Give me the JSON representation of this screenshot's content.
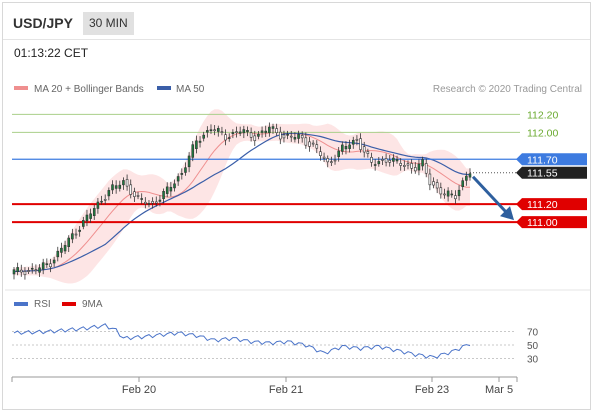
{
  "header": {
    "symbol": "USD/JPY",
    "interval": "30 MIN"
  },
  "timestamp": "01:13:22 CET",
  "legend": {
    "bb_label": "MA 20 + Bollinger Bands",
    "ma50_label": "MA 50",
    "credit": "Research © 2020 Trading Central"
  },
  "rsi_legend": {
    "rsi_label": "RSI",
    "ma9_label": "9MA"
  },
  "colors": {
    "candle_fill": "#1f7a3f",
    "bollinger": "#fbd0d0",
    "ma20": "#ef8f8f",
    "ma50": "#3a5ea8",
    "support": "#e00000",
    "resistance": "#a9cf8a",
    "pivot": "#3d7be0",
    "arrow": "#2e5f9e",
    "rsi": "#4b74c9"
  },
  "chart_data": {
    "type": "candlestick",
    "title": "USD/JPY",
    "interval": "30 MIN",
    "x_ticks": [
      "Feb 20",
      "Feb 21",
      "Feb 23",
      "Mar 5"
    ],
    "ylim": [
      110.4,
      112.36
    ],
    "indicators": [
      "MA 20 + Bollinger Bands",
      "MA 50"
    ],
    "current_price": 111.55,
    "levels": [
      {
        "label": "112.20",
        "value": 112.2,
        "type": "resistance"
      },
      {
        "label": "112.00",
        "value": 112.0,
        "type": "resistance"
      },
      {
        "label": "111.70",
        "value": 111.7,
        "type": "pivot"
      },
      {
        "label": "111.55",
        "value": 111.55,
        "type": "last"
      },
      {
        "label": "111.20",
        "value": 111.2,
        "type": "support"
      },
      {
        "label": "111.00",
        "value": 111.0,
        "type": "support"
      }
    ],
    "anchors": [
      {
        "i": 0,
        "price": 110.45
      },
      {
        "i": 6,
        "price": 110.47
      },
      {
        "i": 10,
        "price": 110.55
      },
      {
        "i": 14,
        "price": 110.75
      },
      {
        "i": 18,
        "price": 110.95
      },
      {
        "i": 22,
        "price": 111.15
      },
      {
        "i": 26,
        "price": 111.35
      },
      {
        "i": 30,
        "price": 111.45
      },
      {
        "i": 34,
        "price": 111.25
      },
      {
        "i": 38,
        "price": 111.2
      },
      {
        "i": 42,
        "price": 111.35
      },
      {
        "i": 46,
        "price": 111.55
      },
      {
        "i": 50,
        "price": 111.9
      },
      {
        "i": 54,
        "price": 112.05
      },
      {
        "i": 58,
        "price": 111.95
      },
      {
        "i": 62,
        "price": 112.02
      },
      {
        "i": 66,
        "price": 111.95
      },
      {
        "i": 70,
        "price": 112.05
      },
      {
        "i": 74,
        "price": 111.95
      },
      {
        "i": 78,
        "price": 111.95
      },
      {
        "i": 82,
        "price": 111.85
      },
      {
        "i": 86,
        "price": 111.65
      },
      {
        "i": 90,
        "price": 111.82
      },
      {
        "i": 94,
        "price": 111.92
      },
      {
        "i": 98,
        "price": 111.65
      },
      {
        "i": 102,
        "price": 111.7
      },
      {
        "i": 106,
        "price": 111.65
      },
      {
        "i": 110,
        "price": 111.6
      },
      {
        "i": 112,
        "price": 111.65
      },
      {
        "i": 114,
        "price": 111.45
      },
      {
        "i": 118,
        "price": 111.3
      },
      {
        "i": 121,
        "price": 111.3
      },
      {
        "i": 124,
        "price": 111.52
      },
      {
        "i": 125,
        "price": 111.55
      }
    ],
    "rsi": {
      "levels": [
        70,
        50,
        30
      ],
      "ylim": [
        10,
        90
      ],
      "anchors": [
        {
          "i": 0,
          "v": 68
        },
        {
          "i": 10,
          "v": 70
        },
        {
          "i": 20,
          "v": 75
        },
        {
          "i": 25,
          "v": 79
        },
        {
          "i": 28,
          "v": 72
        },
        {
          "i": 30,
          "v": 60
        },
        {
          "i": 35,
          "v": 62
        },
        {
          "i": 40,
          "v": 65
        },
        {
          "i": 45,
          "v": 68
        },
        {
          "i": 50,
          "v": 64
        },
        {
          "i": 55,
          "v": 57
        },
        {
          "i": 60,
          "v": 60
        },
        {
          "i": 65,
          "v": 55
        },
        {
          "i": 70,
          "v": 53
        },
        {
          "i": 75,
          "v": 55
        },
        {
          "i": 80,
          "v": 50
        },
        {
          "i": 85,
          "v": 38
        },
        {
          "i": 90,
          "v": 48
        },
        {
          "i": 95,
          "v": 45
        },
        {
          "i": 100,
          "v": 48
        },
        {
          "i": 105,
          "v": 42
        },
        {
          "i": 110,
          "v": 36
        },
        {
          "i": 115,
          "v": 32
        },
        {
          "i": 120,
          "v": 40
        },
        {
          "i": 125,
          "v": 52
        }
      ]
    }
  }
}
